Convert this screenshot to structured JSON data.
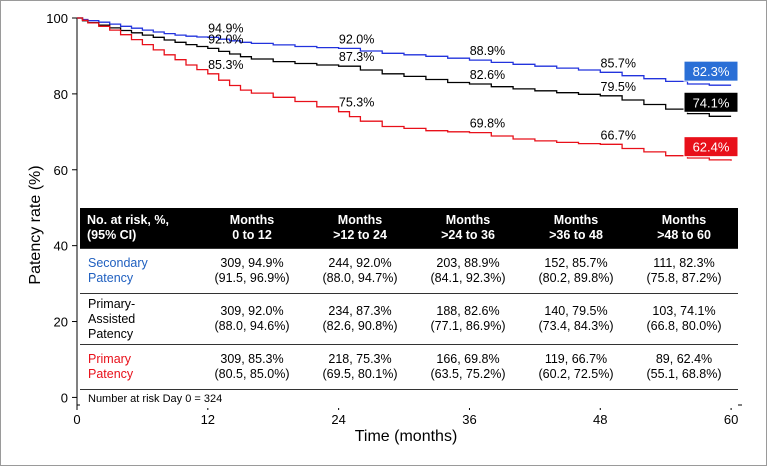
{
  "chart_data": {
    "type": "line",
    "xlabel": "Time (months)",
    "ylabel": "Patency rate (%)",
    "xlim": [
      0,
      61
    ],
    "ylim": [
      -2,
      100
    ],
    "x_ticks": [
      0,
      12,
      24,
      36,
      48,
      60
    ],
    "y_ticks": [
      0,
      20,
      40,
      60,
      80,
      100
    ],
    "grid": false,
    "series": [
      {
        "name": "Secondary Patency",
        "color": "#2233dd",
        "x": [
          0,
          0.5,
          1,
          2,
          3,
          4,
          5,
          6,
          7,
          8,
          9,
          10,
          11,
          12,
          13,
          14,
          15,
          16,
          18,
          20,
          22,
          24,
          26,
          28,
          30,
          32,
          34,
          36,
          38,
          40,
          42,
          44,
          46,
          48,
          50,
          52,
          54,
          56,
          58,
          60
        ],
        "y": [
          100,
          99.6,
          99.3,
          98.9,
          98.4,
          97.8,
          97.3,
          96.8,
          96.3,
          95.9,
          95.5,
          95.2,
          95.0,
          94.9,
          94.4,
          94.0,
          93.6,
          93.3,
          92.9,
          92.5,
          92.2,
          92.0,
          91.3,
          90.7,
          90.3,
          89.9,
          89.4,
          88.9,
          88.3,
          87.8,
          87.3,
          86.8,
          86.3,
          85.7,
          84.8,
          84.0,
          83.3,
          82.6,
          82.3,
          82.3
        ]
      },
      {
        "name": "Primary-Assisted Patency",
        "color": "#000000",
        "x": [
          0,
          0.5,
          1,
          2,
          3,
          4,
          5,
          6,
          7,
          8,
          9,
          10,
          11,
          12,
          13,
          14,
          15,
          16,
          18,
          20,
          22,
          24,
          26,
          28,
          30,
          32,
          34,
          36,
          38,
          40,
          42,
          44,
          46,
          48,
          50,
          52,
          54,
          56,
          58,
          60
        ],
        "y": [
          100,
          99.3,
          98.8,
          98.1,
          97.4,
          96.7,
          96.1,
          95.5,
          94.9,
          94.2,
          93.6,
          93.0,
          92.5,
          92.0,
          91.2,
          90.5,
          89.8,
          89.2,
          88.5,
          88.0,
          87.6,
          87.3,
          86.3,
          85.3,
          84.6,
          83.8,
          83.0,
          82.6,
          81.9,
          81.3,
          80.8,
          80.3,
          79.9,
          79.5,
          78.4,
          77.2,
          76.0,
          74.8,
          74.1,
          74.1
        ]
      },
      {
        "name": "Primary Patency",
        "color": "#e8101a",
        "x": [
          0,
          0.5,
          1,
          2,
          3,
          4,
          5,
          6,
          7,
          8,
          9,
          10,
          11,
          12,
          13,
          14,
          15,
          16,
          18,
          20,
          22,
          24,
          25,
          26,
          28,
          30,
          32,
          34,
          36,
          38,
          40,
          42,
          44,
          46,
          48,
          50,
          52,
          54,
          56,
          58,
          60
        ],
        "y": [
          100,
          99.4,
          98.7,
          97.8,
          96.8,
          95.6,
          94.3,
          93.0,
          91.6,
          90.3,
          89.0,
          87.6,
          86.4,
          85.3,
          83.6,
          82.2,
          81.0,
          80.2,
          79.1,
          78.0,
          76.6,
          75.3,
          74.0,
          72.8,
          71.4,
          70.9,
          70.3,
          70.0,
          69.8,
          68.9,
          68.1,
          67.6,
          67.2,
          66.9,
          66.7,
          65.6,
          64.7,
          63.7,
          63.1,
          62.6,
          62.4
        ]
      }
    ],
    "point_labels": [
      {
        "x": 12,
        "y": 94.9,
        "text": "94.9%",
        "series": 0
      },
      {
        "x": 24,
        "y": 92.0,
        "text": "92.0%",
        "series": 0
      },
      {
        "x": 36,
        "y": 88.9,
        "text": "88.9%",
        "series": 0
      },
      {
        "x": 48,
        "y": 85.7,
        "text": "85.7%",
        "series": 0
      },
      {
        "x": 12,
        "y": 92.0,
        "text": "92.0%",
        "series": 1
      },
      {
        "x": 24,
        "y": 87.3,
        "text": "87.3%",
        "series": 1
      },
      {
        "x": 36,
        "y": 82.6,
        "text": "82.6%",
        "series": 1
      },
      {
        "x": 48,
        "y": 79.5,
        "text": "79.5%",
        "series": 1
      },
      {
        "x": 12,
        "y": 85.3,
        "text": "85.3%",
        "series": 2
      },
      {
        "x": 24,
        "y": 75.3,
        "text": "75.3%",
        "series": 2
      },
      {
        "x": 36,
        "y": 69.8,
        "text": "69.8%",
        "series": 2
      },
      {
        "x": 48,
        "y": 66.7,
        "text": "66.7%",
        "series": 2
      }
    ],
    "end_badges": [
      {
        "y": 82.3,
        "text": "82.3%",
        "fill": "#2a6fd6",
        "text_color": "#ffffff"
      },
      {
        "y": 74.1,
        "text": "74.1%",
        "fill": "#000000",
        "text_color": "#ffffff"
      },
      {
        "y": 62.4,
        "text": "62.4%",
        "fill": "#e8101a",
        "text_color": "#ffffff"
      }
    ],
    "table": {
      "header": [
        [
          "No. at risk, %,",
          "(95% CI)"
        ],
        [
          "Months",
          "0 to 12"
        ],
        [
          "Months",
          ">12 to 24"
        ],
        [
          "Months",
          ">24 to 36"
        ],
        [
          "Months",
          ">36 to 48"
        ],
        [
          "Months",
          ">48 to 60"
        ]
      ],
      "rows": [
        {
          "label": [
            "Secondary",
            "Patency"
          ],
          "label_color": "blue",
          "cells": [
            [
              "309, 94.9%",
              "(91.5, 96.9%)"
            ],
            [
              "244, 92.0%",
              "(88.0, 94.7%)"
            ],
            [
              "203, 88.9%",
              "(84.1, 92.3%)"
            ],
            [
              "152, 85.7%",
              "(80.2, 89.8%)"
            ],
            [
              "111, 82.3%",
              "(75.8, 87.2%)"
            ]
          ]
        },
        {
          "label": [
            "Primary-",
            "Assisted",
            "Patency"
          ],
          "label_color": "black",
          "cells": [
            [
              "309, 92.0%",
              "(88.0, 94.6%)"
            ],
            [
              "234, 87.3%",
              "(82.6, 90.8%)"
            ],
            [
              "188, 82.6%",
              "(77.1, 86.9%)"
            ],
            [
              "140, 79.5%",
              "(73.4, 84.3%)"
            ],
            [
              "103, 74.1%",
              "(66.8, 80.0%)"
            ]
          ]
        },
        {
          "label": [
            "Primary",
            "Patency"
          ],
          "label_color": "red",
          "cells": [
            [
              "309, 85.3%",
              "(80.5, 85.0%)"
            ],
            [
              "218, 75.3%",
              "(69.5, 80.1%)"
            ],
            [
              "166, 69.8%",
              "(63.5, 75.2%)"
            ],
            [
              "119, 66.7%",
              "(60.2, 72.5%)"
            ],
            [
              "89, 62.4%",
              "(55.1, 68.8%)"
            ]
          ]
        }
      ],
      "footer": "Number at risk Day 0 = 324"
    }
  }
}
